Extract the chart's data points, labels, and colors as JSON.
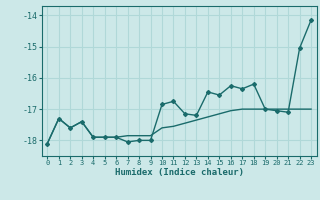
{
  "xlabel": "Humidex (Indice chaleur)",
  "background_color": "#cce8e8",
  "grid_color": "#b0d8d8",
  "line_color": "#1a6b6b",
  "xlim": [
    -0.5,
    23.5
  ],
  "ylim": [
    -18.5,
    -13.7
  ],
  "yticks": [
    -18,
    -17,
    -16,
    -15,
    -14
  ],
  "xticks": [
    0,
    1,
    2,
    3,
    4,
    5,
    6,
    7,
    8,
    9,
    10,
    11,
    12,
    13,
    14,
    15,
    16,
    17,
    18,
    19,
    20,
    21,
    22,
    23
  ],
  "series1_x": [
    0,
    1,
    2,
    3,
    4,
    5,
    6,
    7,
    8,
    9,
    10,
    11,
    12,
    13,
    14,
    15,
    16,
    17,
    18,
    19,
    20,
    21,
    22,
    23
  ],
  "series1_y": [
    -18.1,
    -17.3,
    -17.6,
    -17.4,
    -17.9,
    -17.9,
    -17.9,
    -17.85,
    -17.85,
    -17.85,
    -17.6,
    -17.55,
    -17.45,
    -17.35,
    -17.25,
    -17.15,
    -17.05,
    -17.0,
    -17.0,
    -17.0,
    -17.0,
    -17.0,
    -17.0,
    -17.0
  ],
  "series2_x": [
    0,
    1,
    2,
    3,
    4,
    5,
    6,
    7,
    8,
    9,
    10,
    11,
    12,
    13,
    14,
    15,
    16,
    17,
    18,
    19,
    20,
    21,
    22,
    23
  ],
  "series2_y": [
    -18.1,
    -17.3,
    -17.6,
    -17.4,
    -17.9,
    -17.9,
    -17.9,
    -18.05,
    -18.0,
    -18.0,
    -16.85,
    -16.75,
    -17.15,
    -17.2,
    -16.45,
    -16.55,
    -16.25,
    -16.35,
    -16.2,
    -17.0,
    -17.05,
    -17.1,
    -15.05,
    -14.15
  ]
}
